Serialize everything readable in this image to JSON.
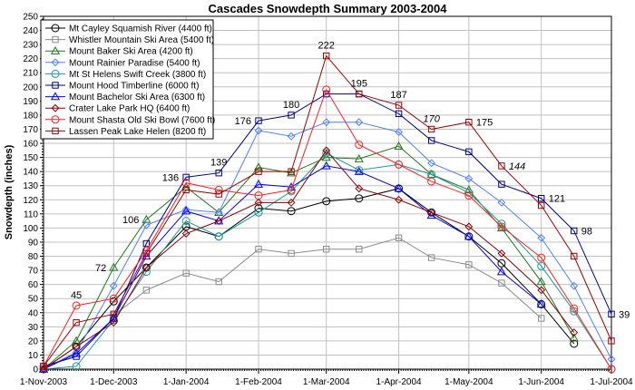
{
  "chart_data": {
    "type": "line",
    "title": "Cascades Snowdepth Summary 2003-2004",
    "xlabel": "",
    "ylabel": "Snowdepth (inches)",
    "ylim": [
      0,
      250
    ],
    "yticks": [
      0,
      10,
      20,
      30,
      40,
      50,
      60,
      70,
      80,
      90,
      100,
      110,
      120,
      130,
      140,
      150,
      160,
      170,
      180,
      190,
      200,
      210,
      220,
      230,
      240,
      250
    ],
    "xlim": [
      "2003-11-01",
      "2004-07-01"
    ],
    "xtick_labels": [
      {
        "date": "2003-11-01",
        "label": "1-Nov-2003"
      },
      {
        "date": "2003-12-01",
        "label": "1-Dec-2003"
      },
      {
        "date": "2004-01-01",
        "label": "1-Jan-2004"
      },
      {
        "date": "2004-02-01",
        "label": "1-Feb-2004"
      },
      {
        "date": "2004-03-01",
        "label": "1-Mar-2004"
      },
      {
        "date": "2004-04-01",
        "label": "1-Apr-2004"
      },
      {
        "date": "2004-05-01",
        "label": "1-May-2004"
      },
      {
        "date": "2004-06-01",
        "label": "1-Jun-2004"
      },
      {
        "date": "2004-07-01",
        "label": "1-Jul-2004"
      }
    ],
    "grid": true,
    "legend_position": "top-left",
    "x": [
      "2003-11-01",
      "2003-11-15",
      "2003-12-01",
      "2003-12-15",
      "2004-01-01",
      "2004-01-15",
      "2004-02-01",
      "2004-02-15",
      "2004-03-01",
      "2004-03-15",
      "2004-04-01",
      "2004-04-15",
      "2004-05-01",
      "2004-05-15",
      "2004-06-01",
      "2004-06-15",
      "2004-07-01"
    ],
    "series": [
      {
        "name": "Mt Cayley Squamish River (4400 ft)",
        "color": "#000000",
        "marker": "circle",
        "values": [
          0,
          16,
          48,
          72,
          101,
          94,
          114,
          112,
          119,
          121,
          128,
          111,
          94,
          75,
          46,
          18,
          null
        ]
      },
      {
        "name": "Whistler Mountain Ski Area (5400 ft)",
        "color": "#8c8c8c",
        "marker": "square",
        "values": [
          null,
          null,
          38,
          56,
          68,
          62,
          85,
          82,
          85,
          85,
          93,
          79,
          74,
          61,
          36,
          null,
          null
        ]
      },
      {
        "name": "Mount Baker Ski Area (4200 ft)",
        "color": "#1c7a1c",
        "marker": "triangle",
        "values": [
          0,
          20,
          72,
          106,
          129,
          111,
          143,
          139,
          150,
          149,
          158,
          138,
          127,
          100,
          62,
          22,
          null
        ]
      },
      {
        "name": "Mount Rainier Paradise (5400 ft)",
        "color": "#4f7fff",
        "marker": "diamond",
        "values": [
          0,
          12,
          59,
          102,
          113,
          111,
          169,
          165,
          175,
          175,
          168,
          146,
          135,
          118,
          93,
          59,
          7
        ]
      },
      {
        "name": "Mt St Helens Swift Creek (3800 ft)",
        "color": "#1a9a9a",
        "marker": "circle",
        "values": [
          0,
          2,
          35,
          69,
          105,
          94,
          111,
          126,
          153,
          141,
          145,
          138,
          125,
          103,
          73,
          41,
          0
        ]
      },
      {
        "name": "Mount Hood Timberline (6000 ft)",
        "color": "#00008b",
        "marker": "square",
        "values": [
          2,
          9,
          36,
          89,
          136,
          139,
          176,
          180,
          195,
          195,
          181,
          162,
          154,
          131,
          121,
          98,
          39
        ]
      },
      {
        "name": "Mount Bachelor Ski Area (6300 ft)",
        "color": "#0000ff",
        "marker": "triangle",
        "values": [
          0,
          11,
          36,
          80,
          112,
          105,
          131,
          129,
          144,
          140,
          128,
          109,
          94,
          69,
          46,
          null,
          null
        ]
      },
      {
        "name": "Crater Lake Park HQ (6400 ft)",
        "color": "#8b0000",
        "marker": "diamond",
        "values": [
          0,
          16,
          33,
          72,
          96,
          105,
          118,
          118,
          155,
          128,
          120,
          111,
          101,
          82,
          56,
          26,
          null
        ]
      },
      {
        "name": "Mount Shasta Old Ski Bowl (7600 ft)",
        "color": "#ff2020",
        "marker": "circle",
        "values": [
          2,
          45,
          50,
          84,
          132,
          127,
          123,
          127,
          198,
          159,
          145,
          133,
          123,
          101,
          79,
          43,
          0
        ]
      },
      {
        "name": "Lassen Peak Lake Helen (8200 ft)",
        "color": "#a00000",
        "marker": "square",
        "values": [
          2,
          33,
          39,
          82,
          127,
          124,
          140,
          140,
          222,
          195,
          187,
          170,
          175,
          144,
          116,
          80,
          20
        ]
      }
    ],
    "data_labels": [
      {
        "series": 8,
        "index": 1,
        "text": "45",
        "italic": false
      },
      {
        "series": 2,
        "index": 2,
        "text": "72",
        "italic": false
      },
      {
        "series": 2,
        "index": 3,
        "text": "106",
        "italic": false
      },
      {
        "series": 5,
        "index": 4,
        "text": "136",
        "italic": false
      },
      {
        "series": 5,
        "index": 5,
        "text": "139",
        "italic": false
      },
      {
        "series": 5,
        "index": 6,
        "text": "176",
        "italic": false
      },
      {
        "series": 5,
        "index": 7,
        "text": "180",
        "italic": false
      },
      {
        "series": 9,
        "index": 8,
        "text": "222",
        "italic": false
      },
      {
        "series": 9,
        "index": 9,
        "text": "195",
        "italic": false
      },
      {
        "series": 9,
        "index": 10,
        "text": "187",
        "italic": false
      },
      {
        "series": 9,
        "index": 11,
        "text": "170",
        "italic": true
      },
      {
        "series": 9,
        "index": 12,
        "text": "175",
        "italic": false
      },
      {
        "series": 9,
        "index": 13,
        "text": "144",
        "italic": true
      },
      {
        "series": 5,
        "index": 14,
        "text": "121",
        "italic": false
      },
      {
        "series": 5,
        "index": 15,
        "text": "98",
        "italic": false
      },
      {
        "series": 5,
        "index": 16,
        "text": "39",
        "italic": false
      }
    ]
  }
}
